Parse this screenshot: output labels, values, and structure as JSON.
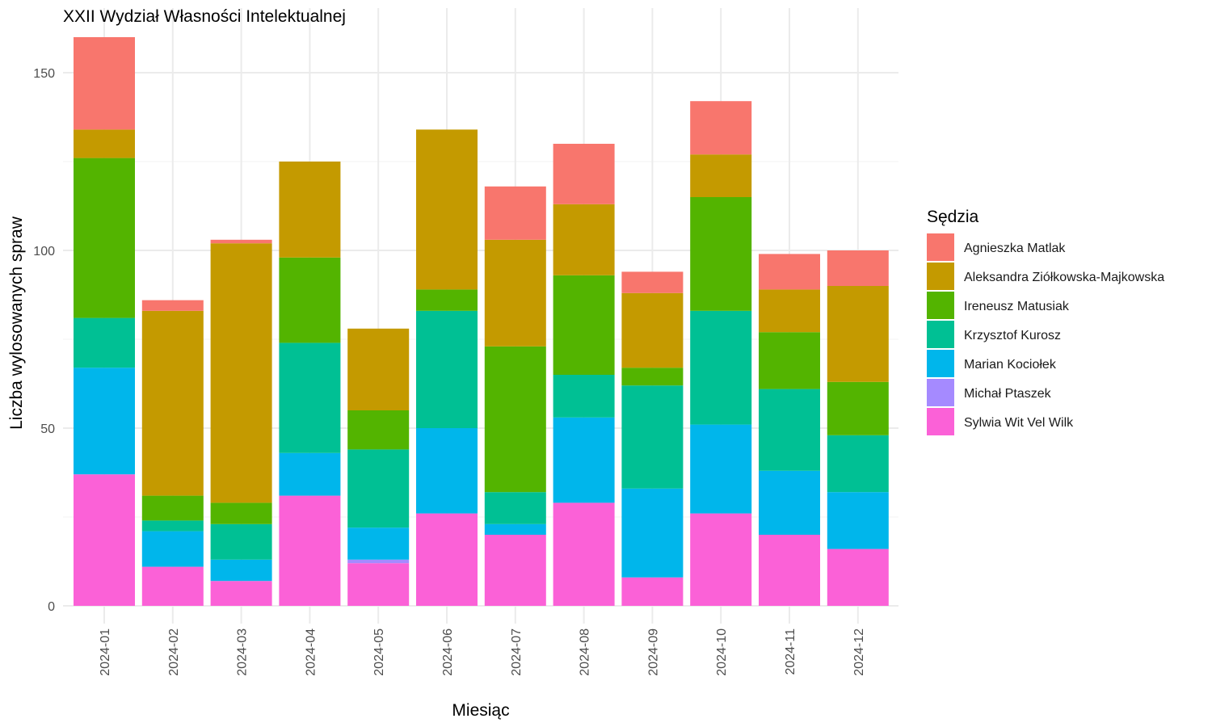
{
  "chart_data": {
    "type": "bar",
    "stacked": true,
    "title": "XXII Wydział Własności Intelektualnej",
    "xlabel": "Miesiąc",
    "ylabel": "Liczba wylosowanych spraw",
    "ylim": [
      0,
      160
    ],
    "yticks": [
      0,
      50,
      100,
      150
    ],
    "grid": true,
    "legend_title": "Sędzia",
    "legend_position": "right",
    "categories": [
      "2024-01",
      "2024-02",
      "2024-03",
      "2024-04",
      "2024-05",
      "2024-06",
      "2024-07",
      "2024-08",
      "2024-09",
      "2024-10",
      "2024-11",
      "2024-12"
    ],
    "series": [
      {
        "name": "Agnieszka Matlak",
        "color": "#F8766D",
        "values": [
          26,
          3,
          1,
          0,
          0,
          0,
          15,
          17,
          6,
          15,
          10,
          10
        ]
      },
      {
        "name": "Aleksandra Ziółkowska-Majkowska",
        "color": "#C49A00",
        "values": [
          8,
          52,
          73,
          27,
          23,
          45,
          30,
          20,
          21,
          12,
          12,
          27
        ]
      },
      {
        "name": "Ireneusz Matusiak",
        "color": "#53B400",
        "values": [
          45,
          7,
          6,
          24,
          11,
          6,
          41,
          28,
          5,
          32,
          16,
          15
        ]
      },
      {
        "name": "Krzysztof Kurosz",
        "color": "#00C094",
        "values": [
          14,
          3,
          10,
          31,
          22,
          33,
          9,
          12,
          29,
          32,
          23,
          16
        ]
      },
      {
        "name": "Marian Kociołek",
        "color": "#00B6EB",
        "values": [
          30,
          10,
          6,
          12,
          9,
          24,
          3,
          24,
          25,
          25,
          18,
          16
        ]
      },
      {
        "name": "Michał Ptaszek",
        "color": "#A58AFF",
        "values": [
          0,
          0,
          0,
          0,
          1,
          0,
          0,
          0,
          0,
          0,
          0,
          0
        ]
      },
      {
        "name": "Sylwia Wit Vel Wilk",
        "color": "#FB61D7",
        "values": [
          37,
          11,
          7,
          31,
          12,
          26,
          20,
          29,
          8,
          26,
          20,
          16
        ]
      }
    ]
  }
}
